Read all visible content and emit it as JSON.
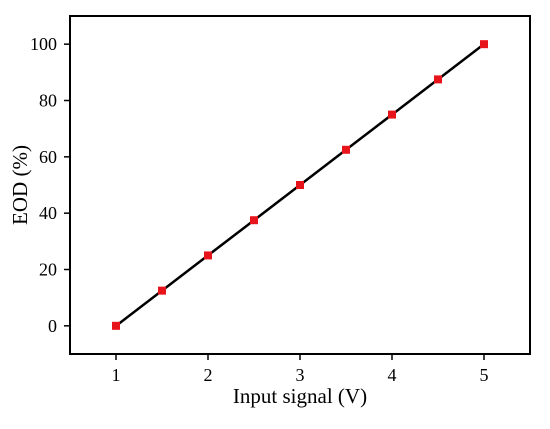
{
  "chart_data": {
    "type": "line",
    "title": "",
    "xlabel": "Input signal (V)",
    "ylabel": "EOD (%)",
    "xlim": [
      0.5,
      5.5
    ],
    "ylim": [
      -10,
      110
    ],
    "xticks": [
      1,
      2,
      3,
      4,
      5
    ],
    "yticks": [
      0,
      20,
      40,
      60,
      80,
      100
    ],
    "grid": false,
    "legend": "none",
    "series": [
      {
        "x": [
          1,
          1.5,
          2,
          2.5,
          3,
          3.5,
          4,
          4.5,
          5
        ],
        "y": [
          0,
          12.5,
          25,
          37.5,
          50,
          62.5,
          75,
          87.5,
          100
        ],
        "marker": "square",
        "marker_color": "#e8141b",
        "line_color": "#000000"
      }
    ]
  }
}
